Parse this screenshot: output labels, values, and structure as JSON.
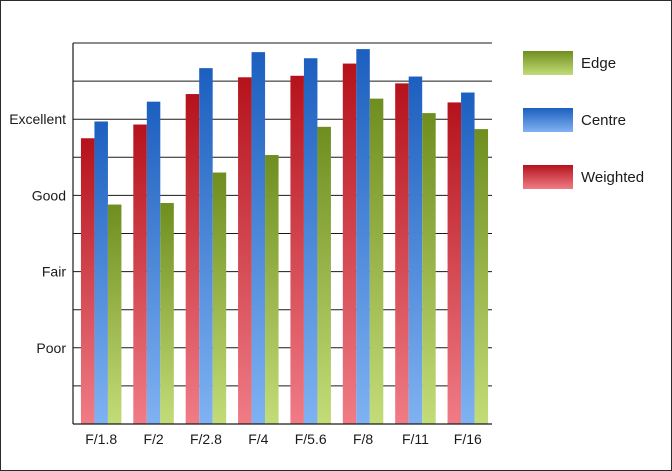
{
  "chart_data": {
    "type": "bar",
    "categories": [
      "F/1.8",
      "F/2",
      "F/2.8",
      "F/4",
      "F/5.6",
      "F/8",
      "F/11",
      "F/16"
    ],
    "y_labels": [
      {
        "value": 1,
        "label": "Poor"
      },
      {
        "value": 2,
        "label": "Fair"
      },
      {
        "value": 3,
        "label": "Good"
      },
      {
        "value": 4,
        "label": "Excellent"
      }
    ],
    "ylim": [
      0,
      5
    ],
    "y_gridlines": [
      0.5,
      1,
      1.5,
      2,
      2.5,
      3,
      3.5,
      4,
      4.5,
      5
    ],
    "series": [
      {
        "name": "Weighted",
        "color_top": "#b5121b",
        "color_bottom": "#f07c86",
        "values": [
          3.75,
          3.93,
          4.33,
          4.55,
          4.57,
          4.73,
          4.47,
          4.22
        ]
      },
      {
        "name": "Centre",
        "color_top": "#1c5fbf",
        "color_bottom": "#7fb2f2",
        "values": [
          3.97,
          4.23,
          4.67,
          4.88,
          4.8,
          4.92,
          4.56,
          4.35
        ]
      },
      {
        "name": "Edge",
        "color_top": "#6f8e1f",
        "color_bottom": "#c3dc78",
        "values": [
          2.88,
          2.9,
          3.3,
          3.53,
          3.9,
          4.27,
          4.08,
          3.87
        ]
      }
    ],
    "legend": {
      "placement": "right",
      "order": [
        "Edge",
        "Centre",
        "Weighted"
      ]
    },
    "grid": true
  }
}
